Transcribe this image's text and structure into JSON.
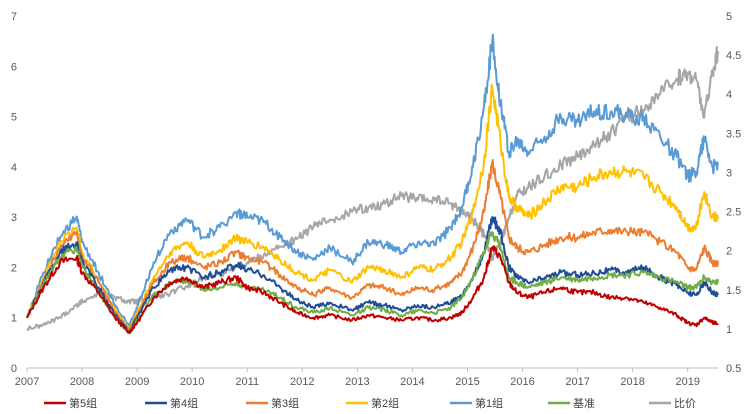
{
  "chart_data": {
    "type": "line",
    "title": "",
    "xlabel": "",
    "ylabel": "",
    "x_ticks": [
      "2007",
      "2008",
      "2009",
      "2010",
      "2011",
      "2012",
      "2013",
      "2014",
      "2015",
      "2016",
      "2017",
      "2018",
      "2019"
    ],
    "x_range": [
      2007.0,
      2019.55
    ],
    "y_left": {
      "range": [
        0,
        7
      ],
      "ticks": [
        "0",
        "1",
        "2",
        "3",
        "4",
        "5",
        "6",
        "7"
      ]
    },
    "y_right": {
      "range": [
        0.5,
        5.0
      ],
      "ticks": [
        "0.5",
        "1",
        "1.5",
        "2",
        "2.5",
        "3",
        "3.5",
        "4",
        "4.5",
        "5"
      ]
    },
    "grid": false,
    "legend_position": "bottom",
    "series": [
      {
        "name": "第5组",
        "color": "#c00000",
        "axis": "left",
        "x": [
          2007.0,
          2007.3,
          2007.6,
          2007.9,
          2008.0,
          2008.3,
          2008.6,
          2008.85,
          2009.0,
          2009.3,
          2009.6,
          2009.9,
          2010.2,
          2010.5,
          2010.8,
          2011.0,
          2011.3,
          2011.6,
          2011.9,
          2012.2,
          2012.5,
          2012.9,
          2013.2,
          2013.5,
          2013.8,
          2014.1,
          2014.4,
          2014.7,
          2014.9,
          2015.1,
          2015.3,
          2015.45,
          2015.6,
          2015.75,
          2015.9,
          2016.1,
          2016.4,
          2016.7,
          2017.0,
          2017.3,
          2017.6,
          2017.9,
          2018.2,
          2018.5,
          2018.8,
          2019.0,
          2019.15,
          2019.3,
          2019.45,
          2019.55
        ],
        "values": [
          1.0,
          1.6,
          2.1,
          2.2,
          1.9,
          1.5,
          1.0,
          0.7,
          0.9,
          1.4,
          1.7,
          1.8,
          1.6,
          1.7,
          1.8,
          1.6,
          1.5,
          1.3,
          1.1,
          1.0,
          1.05,
          0.95,
          1.05,
          1.0,
          0.95,
          1.0,
          0.95,
          1.0,
          1.1,
          1.4,
          1.8,
          2.4,
          2.2,
          1.7,
          1.5,
          1.4,
          1.5,
          1.6,
          1.5,
          1.5,
          1.4,
          1.4,
          1.3,
          1.2,
          1.05,
          0.9,
          0.85,
          1.0,
          0.9,
          0.88
        ]
      },
      {
        "name": "第4组",
        "color": "#1f4e96",
        "axis": "left",
        "x": [
          2007.0,
          2007.3,
          2007.6,
          2007.9,
          2008.0,
          2008.3,
          2008.6,
          2008.85,
          2009.0,
          2009.3,
          2009.6,
          2009.9,
          2010.2,
          2010.5,
          2010.8,
          2011.0,
          2011.3,
          2011.6,
          2011.9,
          2012.2,
          2012.5,
          2012.9,
          2013.2,
          2013.5,
          2013.8,
          2014.1,
          2014.4,
          2014.7,
          2014.9,
          2015.1,
          2015.3,
          2015.45,
          2015.6,
          2015.75,
          2015.9,
          2016.1,
          2016.4,
          2016.7,
          2017.0,
          2017.3,
          2017.6,
          2017.9,
          2018.2,
          2018.5,
          2018.8,
          2019.0,
          2019.15,
          2019.3,
          2019.45,
          2019.55
        ],
        "values": [
          1.0,
          1.7,
          2.3,
          2.5,
          2.1,
          1.6,
          1.05,
          0.72,
          1.0,
          1.6,
          1.95,
          2.0,
          1.8,
          1.9,
          2.05,
          1.95,
          1.85,
          1.6,
          1.35,
          1.2,
          1.3,
          1.15,
          1.3,
          1.25,
          1.15,
          1.25,
          1.2,
          1.3,
          1.45,
          1.8,
          2.3,
          3.0,
          2.7,
          2.0,
          1.8,
          1.7,
          1.8,
          1.9,
          1.85,
          1.9,
          1.95,
          1.9,
          2.0,
          1.8,
          1.65,
          1.5,
          1.45,
          1.7,
          1.5,
          1.45
        ]
      },
      {
        "name": "第3组",
        "color": "#ed7d31",
        "axis": "left",
        "x": [
          2007.0,
          2007.3,
          2007.6,
          2007.9,
          2008.0,
          2008.3,
          2008.6,
          2008.85,
          2009.0,
          2009.3,
          2009.6,
          2009.9,
          2010.2,
          2010.5,
          2010.8,
          2011.0,
          2011.3,
          2011.6,
          2011.9,
          2012.2,
          2012.5,
          2012.9,
          2013.2,
          2013.5,
          2013.8,
          2014.1,
          2014.4,
          2014.7,
          2014.9,
          2015.1,
          2015.3,
          2015.45,
          2015.6,
          2015.75,
          2015.9,
          2016.1,
          2016.4,
          2016.7,
          2017.0,
          2017.3,
          2017.6,
          2017.9,
          2018.2,
          2018.5,
          2018.8,
          2019.0,
          2019.15,
          2019.3,
          2019.45,
          2019.55
        ],
        "values": [
          1.0,
          1.75,
          2.4,
          2.7,
          2.2,
          1.7,
          1.1,
          0.75,
          1.05,
          1.7,
          2.1,
          2.2,
          2.0,
          2.1,
          2.3,
          2.2,
          2.1,
          1.85,
          1.6,
          1.45,
          1.6,
          1.4,
          1.65,
          1.6,
          1.45,
          1.6,
          1.55,
          1.7,
          1.9,
          2.4,
          3.1,
          4.1,
          3.4,
          2.6,
          2.4,
          2.3,
          2.45,
          2.6,
          2.6,
          2.7,
          2.75,
          2.7,
          2.7,
          2.5,
          2.3,
          2.0,
          1.95,
          2.4,
          2.1,
          2.05
        ]
      },
      {
        "name": "第2组",
        "color": "#ffc000",
        "axis": "left",
        "x": [
          2007.0,
          2007.3,
          2007.6,
          2007.9,
          2008.0,
          2008.3,
          2008.6,
          2008.85,
          2009.0,
          2009.3,
          2009.6,
          2009.9,
          2010.2,
          2010.5,
          2010.8,
          2011.0,
          2011.3,
          2011.6,
          2011.9,
          2012.2,
          2012.5,
          2012.9,
          2013.2,
          2013.5,
          2013.8,
          2014.1,
          2014.4,
          2014.7,
          2014.9,
          2015.1,
          2015.3,
          2015.45,
          2015.6,
          2015.75,
          2015.9,
          2016.1,
          2016.4,
          2016.7,
          2017.0,
          2017.3,
          2017.6,
          2017.9,
          2018.2,
          2018.5,
          2018.8,
          2019.0,
          2019.15,
          2019.3,
          2019.45,
          2019.55
        ],
        "values": [
          1.0,
          1.8,
          2.5,
          2.8,
          2.3,
          1.75,
          1.15,
          0.78,
          1.1,
          1.8,
          2.3,
          2.5,
          2.2,
          2.35,
          2.6,
          2.5,
          2.4,
          2.15,
          1.9,
          1.75,
          1.95,
          1.7,
          2.0,
          1.95,
          1.8,
          2.0,
          1.95,
          2.2,
          2.5,
          3.1,
          4.1,
          5.6,
          4.5,
          3.4,
          3.2,
          3.0,
          3.3,
          3.6,
          3.6,
          3.8,
          3.9,
          3.9,
          3.8,
          3.5,
          3.2,
          2.8,
          2.8,
          3.5,
          3.0,
          3.0
        ]
      },
      {
        "name": "第1组",
        "color": "#5b9bd5",
        "axis": "left",
        "x": [
          2007.0,
          2007.3,
          2007.6,
          2007.9,
          2008.0,
          2008.3,
          2008.6,
          2008.85,
          2009.0,
          2009.3,
          2009.6,
          2009.9,
          2010.2,
          2010.5,
          2010.8,
          2011.0,
          2011.3,
          2011.6,
          2011.9,
          2012.2,
          2012.5,
          2012.9,
          2013.2,
          2013.5,
          2013.8,
          2014.1,
          2014.4,
          2014.7,
          2014.9,
          2015.1,
          2015.3,
          2015.45,
          2015.6,
          2015.75,
          2015.9,
          2016.1,
          2016.4,
          2016.7,
          2017.0,
          2017.3,
          2017.6,
          2017.9,
          2018.2,
          2018.5,
          2018.8,
          2019.0,
          2019.15,
          2019.3,
          2019.45,
          2019.55
        ],
        "values": [
          1.0,
          1.9,
          2.6,
          3.0,
          2.5,
          1.9,
          1.25,
          0.85,
          1.2,
          2.1,
          2.7,
          2.95,
          2.6,
          2.8,
          3.1,
          3.0,
          2.9,
          2.6,
          2.3,
          2.15,
          2.4,
          2.1,
          2.5,
          2.45,
          2.3,
          2.5,
          2.45,
          2.8,
          3.2,
          4.0,
          5.2,
          6.5,
          5.3,
          4.3,
          4.5,
          4.3,
          4.6,
          5.0,
          4.9,
          5.1,
          5.1,
          5.0,
          5.0,
          4.6,
          4.2,
          3.8,
          3.9,
          4.6,
          4.0,
          4.05
        ]
      },
      {
        "name": "基准",
        "color": "#70ad47",
        "axis": "left",
        "x": [
          2007.0,
          2007.3,
          2007.6,
          2007.9,
          2008.0,
          2008.3,
          2008.6,
          2008.85,
          2009.0,
          2009.3,
          2009.6,
          2009.9,
          2010.2,
          2010.5,
          2010.8,
          2011.0,
          2011.3,
          2011.6,
          2011.9,
          2012.2,
          2012.5,
          2012.9,
          2013.2,
          2013.5,
          2013.8,
          2014.1,
          2014.4,
          2014.7,
          2014.9,
          2015.1,
          2015.3,
          2015.45,
          2015.6,
          2015.75,
          2015.9,
          2016.1,
          2016.4,
          2016.7,
          2017.0,
          2017.3,
          2017.6,
          2017.9,
          2018.2,
          2018.5,
          2018.8,
          2019.0,
          2019.15,
          2019.3,
          2019.45,
          2019.55
        ],
        "values": [
          1.0,
          1.65,
          2.2,
          2.4,
          2.0,
          1.5,
          1.0,
          0.7,
          0.95,
          1.45,
          1.7,
          1.75,
          1.55,
          1.6,
          1.7,
          1.6,
          1.55,
          1.4,
          1.2,
          1.1,
          1.2,
          1.05,
          1.2,
          1.15,
          1.05,
          1.15,
          1.1,
          1.2,
          1.4,
          1.8,
          2.3,
          2.7,
          2.4,
          1.8,
          1.7,
          1.6,
          1.7,
          1.8,
          1.75,
          1.8,
          1.85,
          1.85,
          1.9,
          1.8,
          1.7,
          1.6,
          1.6,
          1.8,
          1.7,
          1.7
        ]
      },
      {
        "name": "比价",
        "color": "#a6a6a6",
        "axis": "right",
        "x": [
          2007.0,
          2007.3,
          2007.6,
          2007.9,
          2008.0,
          2008.3,
          2008.6,
          2008.85,
          2009.0,
          2009.3,
          2009.6,
          2009.9,
          2010.2,
          2010.5,
          2010.8,
          2011.0,
          2011.3,
          2011.6,
          2011.9,
          2012.2,
          2012.5,
          2012.9,
          2013.2,
          2013.5,
          2013.8,
          2014.1,
          2014.4,
          2014.7,
          2014.9,
          2015.1,
          2015.3,
          2015.45,
          2015.6,
          2015.75,
          2015.9,
          2016.1,
          2016.4,
          2016.7,
          2017.0,
          2017.3,
          2017.6,
          2017.9,
          2018.2,
          2018.5,
          2018.8,
          2019.0,
          2019.15,
          2019.3,
          2019.45,
          2019.55
        ],
        "values": [
          1.0,
          1.05,
          1.15,
          1.3,
          1.35,
          1.45,
          1.4,
          1.35,
          1.35,
          1.4,
          1.45,
          1.55,
          1.65,
          1.7,
          1.8,
          1.85,
          1.95,
          2.05,
          2.15,
          2.3,
          2.4,
          2.5,
          2.55,
          2.6,
          2.7,
          2.65,
          2.65,
          2.6,
          2.5,
          2.4,
          2.2,
          1.9,
          2.1,
          2.4,
          2.7,
          2.8,
          2.95,
          3.1,
          3.2,
          3.35,
          3.5,
          3.7,
          3.8,
          4.0,
          4.2,
          4.25,
          4.2,
          3.7,
          4.3,
          4.55
        ]
      }
    ]
  }
}
